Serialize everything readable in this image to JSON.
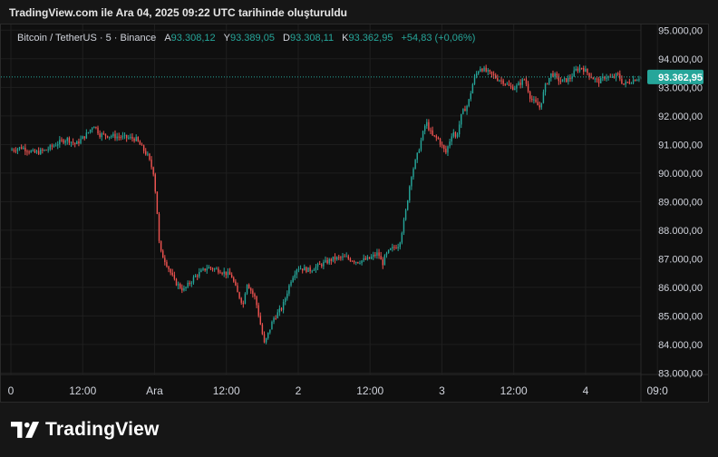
{
  "caption": "TradingView.com ile Ara 04, 2025 09:22 UTC tarihinde oluşturuldu",
  "legend": {
    "symbol": "Bitcoin / TetherUS · 5 · Binance",
    "open_key": "A",
    "open": "93.308,12",
    "high_key": "Y",
    "high": "93.389,05",
    "low_key": "D",
    "low": "93.308,11",
    "close_key": "K",
    "close": "93.362,95",
    "change": "+54,83 (+0,06%)"
  },
  "brand": {
    "name": "TradingView"
  },
  "colors": {
    "up": "#26a69a",
    "down": "#ef5350",
    "price_label_bg": "#26a69a",
    "background": "#0f0f0f",
    "grid": "#1f1f1f"
  },
  "chart_data": {
    "type": "candlestick",
    "title": "Bitcoin / TetherUS · 5 · Binance",
    "y_axis": {
      "ticks": [
        95000,
        94000,
        93000,
        92000,
        91000,
        90000,
        89000,
        88000,
        87000,
        86000,
        85000,
        84000,
        83000
      ],
      "tick_labels": [
        "95.000,00",
        "94.000,00",
        "93.000,00",
        "92.000,00",
        "91.000,00",
        "90.000,00",
        "89.000,00",
        "88.000,00",
        "87.000,00",
        "86.000,00",
        "85.000,00",
        "84.000,00",
        "83.000,00"
      ],
      "range": [
        82950,
        95200
      ]
    },
    "x_axis": {
      "ticks": [
        0,
        12,
        24,
        36,
        48,
        60,
        72,
        84,
        96,
        108
      ],
      "tick_labels": [
        "0",
        "12:00",
        "Ara",
        "12:00",
        "2",
        "12:00",
        "3",
        "12:00",
        "4",
        "09:0"
      ],
      "range_hours": [
        0,
        105.4
      ]
    },
    "last_price": 93362.95,
    "last_price_label": "93.362,95",
    "grid": true,
    "price_path_hours": [
      0,
      2,
      4,
      6,
      8,
      9.5,
      11,
      13,
      14,
      15,
      17,
      19,
      21,
      23,
      24,
      24.5,
      25,
      26,
      27.5,
      29,
      31,
      33,
      35,
      37,
      38,
      39,
      39.5,
      41,
      42.5,
      44,
      45.5,
      47,
      48,
      50,
      52,
      54,
      56,
      58,
      60,
      61.5,
      62.2,
      62.7,
      63.5,
      65,
      66,
      67,
      68,
      68.5,
      69.5,
      70.5,
      71.5,
      72.8,
      74,
      74.5,
      75.5,
      76.5,
      77.5,
      78.5,
      80,
      81.5,
      82.5,
      83.5,
      84.5,
      86,
      87,
      88.5,
      89.5,
      90.5,
      92,
      93.5,
      94.5,
      95.5,
      96.5,
      97.5,
      98.5,
      99.5,
      100.5,
      101.5,
      102.5,
      103.5,
      104.5,
      105.4
    ],
    "price_path_values": [
      90800,
      90900,
      90700,
      90800,
      91050,
      91200,
      91000,
      91400,
      91700,
      91350,
      91300,
      91250,
      91200,
      90600,
      90000,
      88900,
      87300,
      86900,
      86200,
      85900,
      86400,
      86700,
      86600,
      86400,
      85800,
      85400,
      86200,
      85600,
      84000,
      84900,
      85300,
      86300,
      86700,
      86600,
      86800,
      87000,
      87050,
      86900,
      87000,
      87200,
      86800,
      87100,
      87300,
      87500,
      88500,
      89900,
      90600,
      91000,
      91800,
      91300,
      91200,
      90700,
      91500,
      91200,
      92100,
      92400,
      93300,
      93700,
      93500,
      93300,
      93200,
      93000,
      93000,
      93300,
      92600,
      92300,
      93100,
      93500,
      93200,
      93300,
      93600,
      93700,
      93500,
      93300,
      93200,
      93400,
      93300,
      93450,
      93100,
      93200,
      93300,
      93362.95
    ]
  }
}
